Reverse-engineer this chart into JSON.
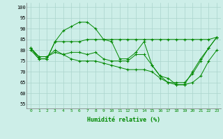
{
  "background_color": "#cdeee8",
  "grid_color": "#aad4cc",
  "line_color": "#008800",
  "xlabel": "Humidité relative (%)",
  "ylabel_ticks": [
    55,
    60,
    65,
    70,
    75,
    80,
    85,
    90,
    95,
    100
  ],
  "xlim": [
    -0.5,
    23.5
  ],
  "ylim": [
    53,
    102
  ],
  "series": [
    [
      80,
      76,
      76,
      84,
      89,
      91,
      93,
      93,
      90,
      85,
      84,
      76,
      76,
      79,
      84,
      73,
      68,
      67,
      64,
      64,
      70,
      76,
      81,
      86
    ],
    [
      81,
      77,
      77,
      80,
      78,
      79,
      79,
      78,
      79,
      76,
      75,
      75,
      75,
      78,
      78,
      73,
      68,
      65,
      65,
      65,
      69,
      75,
      81,
      86
    ],
    [
      81,
      76,
      76,
      84,
      84,
      84,
      84,
      85,
      85,
      85,
      85,
      85,
      85,
      85,
      85,
      85,
      85,
      85,
      85,
      85,
      85,
      85,
      85,
      86
    ],
    [
      81,
      77,
      77,
      79,
      78,
      76,
      75,
      75,
      75,
      74,
      73,
      72,
      71,
      71,
      71,
      70,
      67,
      65,
      64,
      64,
      65,
      68,
      75,
      80
    ]
  ]
}
